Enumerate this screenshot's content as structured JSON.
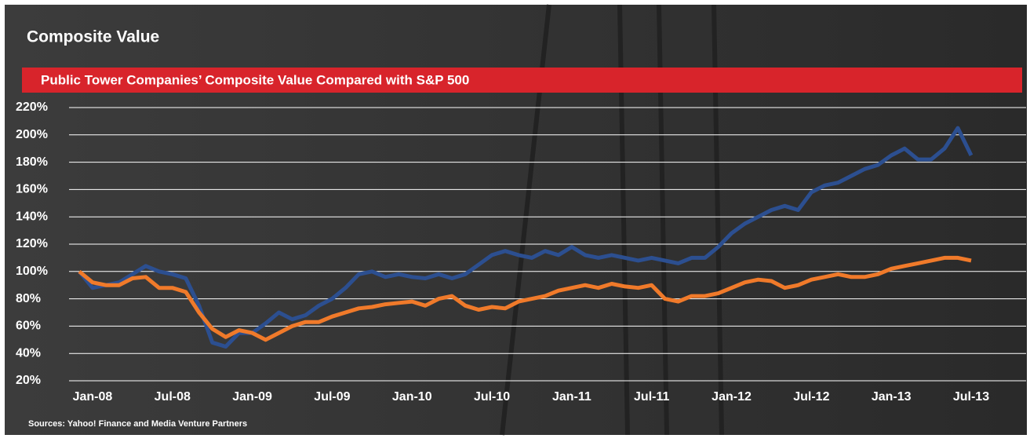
{
  "chart_data": {
    "type": "line",
    "title": "Composite Value",
    "subtitle": "Public Tower Companies’ Composite Value Compared with S&P 500",
    "source": "Sources: Yahoo! Finance and Media Venture Partners",
    "x": [
      "Dec-07",
      "Jan-08",
      "Feb-08",
      "Mar-08",
      "Apr-08",
      "May-08",
      "Jun-08",
      "Jul-08",
      "Aug-08",
      "Sep-08",
      "Oct-08",
      "Nov-08",
      "Dec-08",
      "Jan-09",
      "Feb-09",
      "Mar-09",
      "Apr-09",
      "May-09",
      "Jun-09",
      "Jul-09",
      "Aug-09",
      "Sep-09",
      "Oct-09",
      "Nov-09",
      "Dec-09",
      "Jan-10",
      "Feb-10",
      "Mar-10",
      "Apr-10",
      "May-10",
      "Jun-10",
      "Jul-10",
      "Aug-10",
      "Sep-10",
      "Oct-10",
      "Nov-10",
      "Dec-10",
      "Jan-11",
      "Feb-11",
      "Mar-11",
      "Apr-11",
      "May-11",
      "Jun-11",
      "Jul-11",
      "Aug-11",
      "Sep-11",
      "Oct-11",
      "Nov-11",
      "Dec-11",
      "Jan-12",
      "Feb-12",
      "Mar-12",
      "Apr-12",
      "May-12",
      "Jun-12",
      "Jul-12",
      "Aug-12",
      "Sep-12",
      "Oct-12",
      "Nov-12",
      "Dec-12",
      "Jan-13",
      "Feb-13",
      "Mar-13",
      "Apr-13",
      "May-13",
      "Jun-13",
      "Jul-13"
    ],
    "xticks": [
      "Jan-08",
      "Jul-08",
      "Jan-09",
      "Jul-09",
      "Jan-10",
      "Jul-10",
      "Jan-11",
      "Jul-11",
      "Jan-12",
      "Jul-12",
      "Jan-13",
      "Jul-13"
    ],
    "series": [
      {
        "color": "#2c4f90",
        "values": [
          100,
          88,
          90,
          92,
          98,
          104,
          100,
          98,
          95,
          75,
          48,
          45,
          55,
          55,
          62,
          70,
          65,
          68,
          75,
          80,
          88,
          98,
          100,
          96,
          98,
          96,
          95,
          98,
          95,
          98,
          105,
          112,
          115,
          112,
          110,
          115,
          112,
          118,
          112,
          110,
          112,
          110,
          108,
          110,
          108,
          106,
          110,
          110,
          118,
          128,
          135,
          140,
          145,
          148,
          145,
          158,
          163,
          165,
          170,
          175,
          178,
          185,
          190,
          182,
          182,
          190,
          205,
          185
        ]
      },
      {
        "color": "#f07a2a",
        "values": [
          100,
          92,
          90,
          90,
          95,
          96,
          88,
          88,
          85,
          70,
          58,
          52,
          57,
          55,
          50,
          55,
          60,
          63,
          63,
          67,
          70,
          73,
          74,
          76,
          77,
          78,
          75,
          80,
          82,
          75,
          72,
          74,
          73,
          78,
          80,
          82,
          86,
          88,
          90,
          88,
          91,
          89,
          88,
          90,
          80,
          78,
          82,
          82,
          84,
          88,
          92,
          94,
          93,
          88,
          90,
          94,
          96,
          98,
          96,
          96,
          98,
          102,
          104,
          106,
          108,
          110,
          110,
          108
        ]
      }
    ],
    "ylim": [
      20,
      220
    ],
    "yticks": [
      {
        "value": 20,
        "label": "20%"
      },
      {
        "value": 40,
        "label": "40%"
      },
      {
        "value": 60,
        "label": "60%"
      },
      {
        "value": 80,
        "label": "80%"
      },
      {
        "value": 100,
        "label": "100%"
      },
      {
        "value": 120,
        "label": "120%"
      },
      {
        "value": 140,
        "label": "140%"
      },
      {
        "value": 160,
        "label": "160%"
      },
      {
        "value": 180,
        "label": "180%"
      },
      {
        "value": 200,
        "label": "200%"
      },
      {
        "value": 220,
        "label": "220%"
      }
    ],
    "grid": true
  }
}
